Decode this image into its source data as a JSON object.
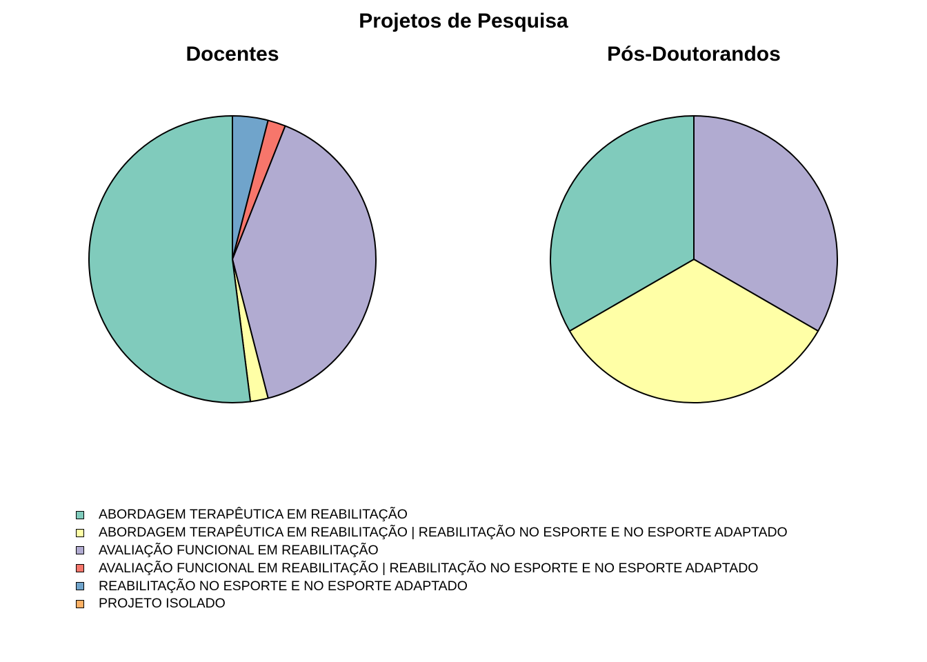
{
  "title": "Projetos de Pesquisa",
  "chart_data": [
    {
      "type": "pie",
      "title": "Docentes",
      "categories": [
        "ABORDAGEM TERAPÊUTICA EM REABILITAÇÃO",
        "ABORDAGEM TERAPÊUTICA EM REABILITAÇÃO | REABILITAÇÃO NO ESPORTE E NO ESPORTE ADAPTADO",
        "AVALIAÇÃO FUNCIONAL EM REABILITAÇÃO",
        "AVALIAÇÃO FUNCIONAL EM REABILITAÇÃO | REABILITAÇÃO NO ESPORTE E NO ESPORTE ADAPTADO",
        "REABILITAÇÃO NO ESPORTE E NO ESPORTE ADAPTADO",
        "PROJETO ISOLADO"
      ],
      "values": [
        26,
        1,
        20,
        1,
        2,
        0
      ]
    },
    {
      "type": "pie",
      "title": "Pós-Doutorandos",
      "categories": [
        "ABORDAGEM TERAPÊUTICA EM REABILITAÇÃO",
        "ABORDAGEM TERAPÊUTICA EM REABILITAÇÃO | REABILITAÇÃO NO ESPORTE E NO ESPORTE ADAPTADO",
        "AVALIAÇÃO FUNCIONAL EM REABILITAÇÃO",
        "AVALIAÇÃO FUNCIONAL EM REABILITAÇÃO | REABILITAÇÃO NO ESPORTE E NO ESPORTE ADAPTADO",
        "REABILITAÇÃO NO ESPORTE E NO ESPORTE ADAPTADO",
        "PROJETO ISOLADO"
      ],
      "values": [
        1,
        1,
        1,
        0,
        0,
        0
      ]
    }
  ],
  "legend": {
    "placement": "bottom",
    "items": [
      {
        "label": "ABORDAGEM TERAPÊUTICA EM REABILITAÇÃO",
        "color": "#80cbbc"
      },
      {
        "label": "ABORDAGEM TERAPÊUTICA EM REABILITAÇÃO | REABILITAÇÃO NO ESPORTE E NO ESPORTE ADAPTADO",
        "color": "#ffffa6"
      },
      {
        "label": "AVALIAÇÃO FUNCIONAL EM REABILITAÇÃO",
        "color": "#b1abd1"
      },
      {
        "label": "AVALIAÇÃO FUNCIONAL EM REABILITAÇÃO | REABILITAÇÃO NO ESPORTE E NO ESPORTE ADAPTADO",
        "color": "#f7766b"
      },
      {
        "label": "REABILITAÇÃO NO ESPORTE E NO ESPORTE ADAPTADO",
        "color": "#70a4cb"
      },
      {
        "label": "PROJETO ISOLADO",
        "color": "#fdb064"
      }
    ]
  }
}
